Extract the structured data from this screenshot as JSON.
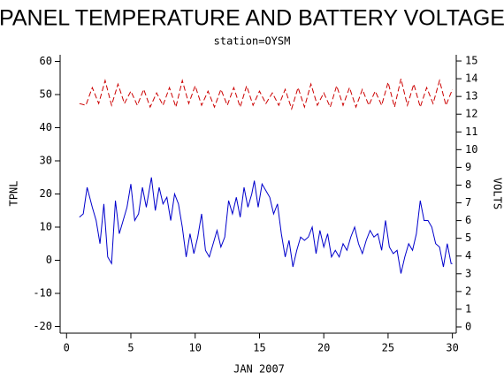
{
  "chart_data": {
    "type": "line",
    "title": "PANEL TEMPERATURE AND BATTERY VOLTAGE",
    "subtitle": "station=OYSM",
    "xlabel": "JAN 2007",
    "ylabel": "TPNL",
    "y2label": "VOLTS",
    "xlim": [
      -0.5,
      30.3
    ],
    "xticks": [
      0,
      5,
      10,
      15,
      20,
      25,
      30
    ],
    "ylim": [
      -22,
      62
    ],
    "yticks": [
      -20,
      -10,
      0,
      10,
      20,
      30,
      40,
      50,
      60
    ],
    "y2lim": [
      -0.35,
      15.35
    ],
    "y2ticks": [
      0,
      1,
      2,
      3,
      4,
      5,
      6,
      7,
      8,
      9,
      10,
      11,
      12,
      13,
      14,
      15
    ],
    "series": [
      {
        "color": "#0000cc",
        "x": [
          1,
          1.3,
          1.6,
          2,
          2.3,
          2.6,
          2.9,
          3.2,
          3.5,
          3.8,
          4.1,
          4.4,
          4.7,
          5,
          5.3,
          5.6,
          5.9,
          6.2,
          6.6,
          6.9,
          7.2,
          7.5,
          7.8,
          8.1,
          8.4,
          8.7,
          9,
          9.3,
          9.6,
          9.9,
          10.2,
          10.5,
          10.8,
          11.1,
          11.4,
          11.7,
          12,
          12.3,
          12.6,
          12.9,
          13.2,
          13.5,
          13.8,
          14.1,
          14.4,
          14.6,
          14.9,
          15.2,
          15.5,
          15.8,
          16.1,
          16.4,
          16.7,
          17,
          17.3,
          17.6,
          17.9,
          18.2,
          18.5,
          18.8,
          19.1,
          19.4,
          19.7,
          20,
          20.3,
          20.6,
          20.9,
          21.2,
          21.5,
          21.8,
          22.1,
          22.4,
          22.7,
          23,
          23.3,
          23.6,
          23.9,
          24.2,
          24.5,
          24.8,
          25.1,
          25.4,
          25.7,
          26,
          26.3,
          26.6,
          26.9,
          27.2,
          27.5,
          27.8,
          28.1,
          28.4,
          28.7,
          29,
          29.3,
          29.6,
          29.9,
          30
        ],
        "values": [
          13,
          14,
          22,
          16,
          12,
          5,
          17,
          1,
          -1,
          18,
          8,
          12,
          16,
          23,
          12,
          14,
          22,
          16,
          25,
          15,
          22,
          17,
          19,
          12,
          20,
          17,
          10,
          1,
          8,
          2,
          7,
          14,
          3,
          1,
          5,
          9,
          4,
          7,
          18,
          14,
          19,
          13,
          22,
          16,
          20,
          24,
          16,
          23,
          21,
          19,
          14,
          17,
          8,
          1,
          6,
          -2,
          3,
          7,
          6,
          7,
          10,
          2,
          9,
          4,
          8,
          1,
          3,
          1,
          5,
          3,
          7,
          10,
          5,
          2,
          6,
          9,
          7,
          8,
          3,
          12,
          4,
          2,
          3,
          -4,
          1,
          5,
          3,
          8,
          18,
          12,
          12,
          10,
          5,
          4,
          -2,
          5,
          -1,
          -1
        ]
      },
      {
        "color": "#cc0000",
        "axis": "y2",
        "dashed": true,
        "x": [
          1,
          1.5,
          2,
          2.5,
          3,
          3.5,
          4,
          4.5,
          5,
          5.5,
          6,
          6.5,
          7,
          7.5,
          8,
          8.5,
          9,
          9.5,
          10,
          10.5,
          11,
          11.5,
          12,
          12.5,
          13,
          13.5,
          14,
          14.5,
          15,
          15.5,
          16,
          16.5,
          17,
          17.5,
          18,
          18.5,
          19,
          19.5,
          20,
          20.5,
          21,
          21.5,
          22,
          22.5,
          23,
          23.5,
          24,
          24.5,
          25,
          25.5,
          26,
          26.5,
          27,
          27.5,
          28,
          28.5,
          29,
          29.5,
          30
        ],
        "values": [
          12.6,
          12.5,
          13.5,
          12.6,
          13.9,
          12.5,
          13.7,
          12.6,
          13.3,
          12.5,
          13.4,
          12.4,
          13.2,
          12.5,
          13.5,
          12.4,
          13.9,
          12.6,
          13.6,
          12.5,
          13.3,
          12.4,
          13.4,
          12.5,
          13.5,
          12.4,
          13.6,
          12.5,
          13.3,
          12.6,
          13.2,
          12.5,
          13.4,
          12.3,
          13.5,
          12.4,
          13.7,
          12.5,
          13.2,
          12.4,
          13.6,
          12.5,
          13.5,
          12.4,
          13.4,
          12.5,
          13.3,
          12.5,
          13.8,
          12.4,
          14.0,
          12.5,
          13.7,
          12.4,
          13.5,
          12.6,
          13.9,
          12.5,
          13.4
        ]
      }
    ]
  }
}
